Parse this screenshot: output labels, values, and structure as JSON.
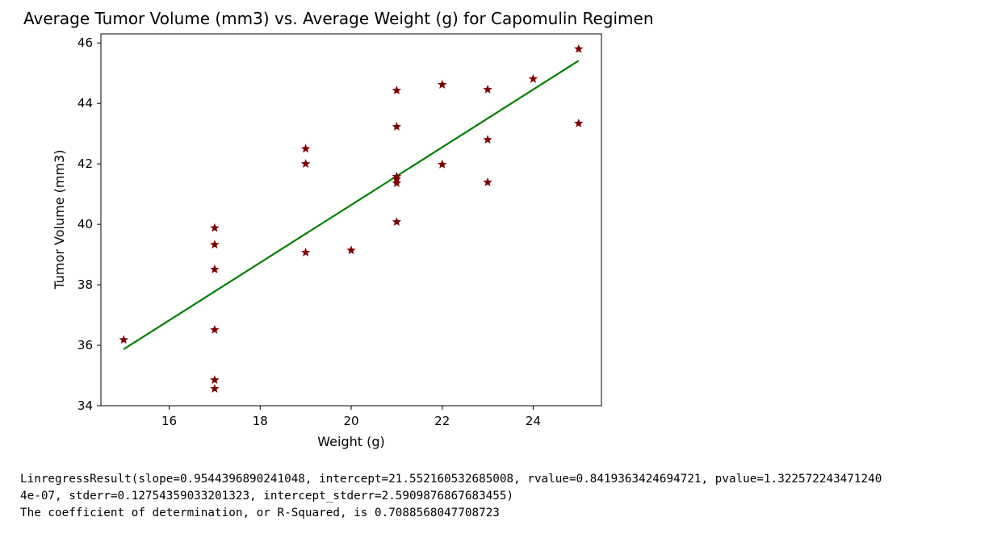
{
  "chart_data": {
    "type": "scatter",
    "title": "Average Tumor Volume (mm3) vs. Average Weight (g) for Capomulin Regimen",
    "xlabel": "Weight (g)",
    "ylabel": "Tumor Volume (mm3)",
    "xlim": [
      14.5,
      25.5
    ],
    "ylim": [
      34,
      46.3
    ],
    "xticks": [
      16,
      18,
      20,
      22,
      24
    ],
    "yticks": [
      34,
      36,
      38,
      40,
      42,
      44,
      46
    ],
    "grid": false,
    "marker": "star",
    "marker_color": "#800000",
    "line_color": "#008000",
    "series": [
      {
        "x": [
          15,
          17,
          17,
          17,
          17,
          17,
          17,
          19,
          19,
          19,
          20,
          21,
          21,
          21,
          21,
          21,
          21,
          22,
          22,
          23,
          23,
          23,
          24,
          25,
          25
        ],
        "y": [
          36.18,
          39.88,
          39.33,
          38.51,
          36.51,
          34.85,
          34.56,
          42.5,
          42.0,
          39.07,
          39.14,
          44.43,
          43.23,
          41.58,
          41.5,
          41.36,
          40.08,
          44.62,
          41.98,
          44.46,
          42.8,
          41.39,
          44.81,
          45.8,
          43.34
        ]
      }
    ],
    "regression_line": {
      "slope": 0.9544396890241048,
      "intercept": 21.552160532685008,
      "x_range": [
        15,
        25
      ]
    }
  },
  "output_text": {
    "line1": "LinregressResult(slope=0.9544396890241048, intercept=21.552160532685008, rvalue=0.8419363424694721, pvalue=1.322572243471240",
    "line2": "4e-07, stderr=0.12754359033201323, intercept_stderr=2.5909876867683455)",
    "line3": "The coefficient of determination, or R-Squared, is 0.7088568047708723"
  }
}
